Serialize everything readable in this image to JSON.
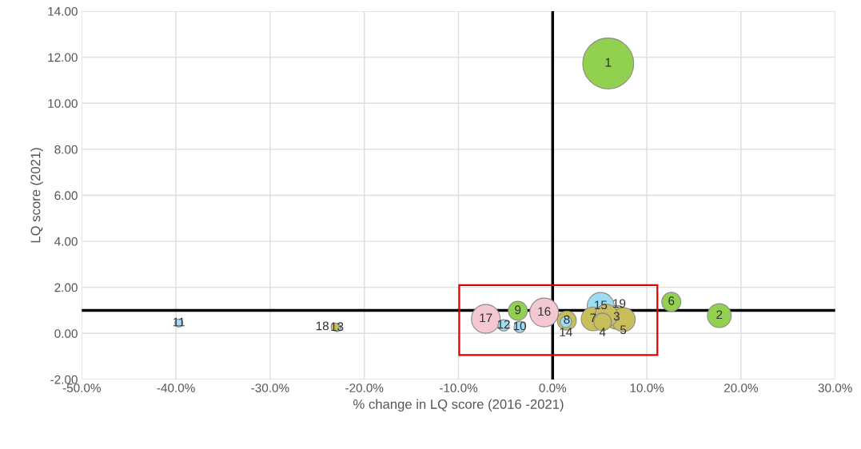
{
  "chart_data": {
    "type": "bubble",
    "xlabel": "% change in LQ score (2016 -2021)",
    "ylabel": "LQ score (2021)",
    "x": [
      5.9,
      17.7,
      6.8,
      5.3,
      7.5,
      12.6,
      4.3,
      1.5,
      -3.7,
      -3.5,
      -39.7,
      -5.2,
      -22.9,
      1.4,
      5.1,
      -0.9,
      -7.1,
      -23.1,
      5.7
    ],
    "values": [
      11.73,
      0.77,
      0.7,
      0.5,
      0.6,
      1.37,
      0.63,
      0.56,
      0.98,
      0.28,
      0.45,
      0.35,
      0.25,
      0.5,
      1.19,
      0.91,
      0.63,
      0.28,
      0.77
    ],
    "sizes": [
      1,
      0.22,
      0.22,
      0.12,
      0.22,
      0.14,
      0.22,
      0.14,
      0.14,
      0.05,
      0.025,
      0.05,
      0.025,
      0.05,
      0.28,
      0.32,
      0.32,
      0.025,
      0.2
    ],
    "colors": [
      "#92d050",
      "#92d050",
      "#c9bf5a",
      "#c9bf5a",
      "#c9bf5a",
      "#92d050",
      "#c9bf5a",
      "#c9bf5a",
      "#92d050",
      "#9ddcf5",
      "#9ddcf5",
      "#9ddcf5",
      "#9ddcf5",
      "#9ddcf5",
      "#9ddcf5",
      "#f4c7d3",
      "#f4c7d3",
      "#c9bf5a",
      "#c9bf5a"
    ],
    "annotations": [
      {
        "text": "1",
        "x": 5.9,
        "y": 11.73
      },
      {
        "text": "2",
        "x": 17.7,
        "y": 0.77
      },
      {
        "text": "3",
        "x": 6.8,
        "y": 0.7
      },
      {
        "text": "4",
        "x": 5.3,
        "y": 0.5
      },
      {
        "text": "5",
        "x": 7.5,
        "y": 0.6
      },
      {
        "text": "6",
        "x": 12.6,
        "y": 1.37
      },
      {
        "text": "7",
        "x": 4.3,
        "y": 0.63
      },
      {
        "text": "8",
        "x": 1.5,
        "y": 0.56
      },
      {
        "text": "9",
        "x": -3.7,
        "y": 0.98
      },
      {
        "text": "10",
        "x": -3.5,
        "y": 0.28
      },
      {
        "text": "11",
        "x": -39.7,
        "y": 0.45
      },
      {
        "text": "12",
        "x": -5.2,
        "y": 0.35
      },
      {
        "text": "13",
        "x": -22.9,
        "y": 0.25
      },
      {
        "text": "14",
        "x": 1.4,
        "y": 0.5
      },
      {
        "text": "15",
        "x": 5.1,
        "y": 1.19
      },
      {
        "text": "16",
        "x": -0.9,
        "y": 0.91
      },
      {
        "text": "17",
        "x": -7.1,
        "y": 0.63
      },
      {
        "text": "18",
        "x": -23.1,
        "y": 0.28
      },
      {
        "text": "19",
        "x": 5.7,
        "y": 0.77
      }
    ],
    "ref_lines": [
      {
        "axis": "y",
        "value": 1,
        "color": "#000000"
      },
      {
        "axis": "x",
        "value": 0,
        "color": "#000000"
      }
    ],
    "xlim": [
      -50,
      30
    ],
    "ylim": [
      -2,
      14
    ],
    "xticks": [
      {
        "value": -50,
        "label": "-50.0%"
      },
      {
        "value": -40,
        "label": "-40.0%"
      },
      {
        "value": -30,
        "label": "-30.0%"
      },
      {
        "value": -20,
        "label": "-20.0%"
      },
      {
        "value": -10,
        "label": "-10.0%"
      },
      {
        "value": 0,
        "label": "0.0%"
      },
      {
        "value": 10,
        "label": "10.0%"
      },
      {
        "value": 20,
        "label": "20.0%"
      },
      {
        "value": 30,
        "label": "30.0%"
      }
    ],
    "yticks": [
      {
        "value": -2,
        "label": "-2.00"
      },
      {
        "value": 0,
        "label": "0.00"
      },
      {
        "value": 2,
        "label": "2.00"
      },
      {
        "value": 4,
        "label": "4.00"
      },
      {
        "value": 6,
        "label": "6.00"
      },
      {
        "value": 8,
        "label": "8.00"
      },
      {
        "value": 10,
        "label": "10.00"
      },
      {
        "value": 12,
        "label": "12.00"
      },
      {
        "value": 14,
        "label": "14.00"
      }
    ],
    "grid": true
  }
}
